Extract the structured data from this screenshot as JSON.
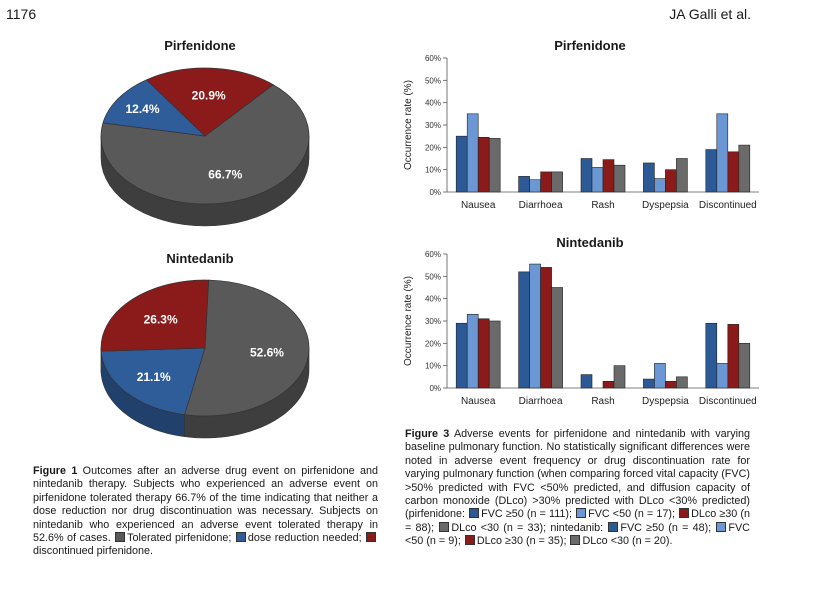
{
  "header": {
    "page_number": "1176",
    "running_head": "JA Galli et al."
  },
  "colors": {
    "tolerated": "#595959",
    "reduction": "#2f5d9a",
    "discontinued": "#8b1a1a",
    "fvc_ge50": "#2c5a96",
    "fvc_lt50": "#6b97d4",
    "dlco_ge30": "#8b1a1a",
    "dlco_lt30": "#6a6a6a"
  },
  "chart_data": [
    {
      "type": "pie",
      "title": "Pirfenidone",
      "slices": [
        {
          "label": "66.7%",
          "value": 66.7,
          "color": "#595959"
        },
        {
          "label": "12.4%",
          "value": 12.4,
          "color": "#2f5d9a"
        },
        {
          "label": "20.9%",
          "value": 20.9,
          "color": "#8b1a1a"
        }
      ]
    },
    {
      "type": "pie",
      "title": "Nintedanib",
      "slices": [
        {
          "label": "52.6%",
          "value": 52.6,
          "color": "#595959"
        },
        {
          "label": "21.1%",
          "value": 21.1,
          "color": "#2f5d9a"
        },
        {
          "label": "26.3%",
          "value": 26.3,
          "color": "#8b1a1a"
        }
      ]
    },
    {
      "type": "bar",
      "title": "Pirfenidone",
      "ylabel": "Occurrence rate (%)",
      "ylim": [
        0,
        60
      ],
      "yticks": [
        "0%",
        "10%",
        "20%",
        "30%",
        "40%",
        "50%",
        "60%"
      ],
      "categories": [
        "Nausea",
        "Diarrhoea",
        "Rash",
        "Dyspepsia",
        "Discontinued"
      ],
      "series": [
        {
          "values": [
            25,
            7,
            15,
            13,
            19
          ]
        },
        {
          "values": [
            35,
            5.5,
            11,
            6,
            35
          ]
        },
        {
          "values": [
            24.5,
            9,
            14.5,
            10,
            18
          ]
        },
        {
          "values": [
            24,
            9,
            12,
            15,
            21
          ]
        }
      ]
    },
    {
      "type": "bar",
      "title": "Nintedanib",
      "ylabel": "Occurrence rate (%)",
      "ylim": [
        0,
        60
      ],
      "yticks": [
        "0%",
        "10%",
        "20%",
        "30%",
        "40%",
        "50%",
        "60%"
      ],
      "categories": [
        "Nausea",
        "Diarrhoea",
        "Rash",
        "Dyspepsia",
        "Discontinued"
      ],
      "series": [
        {
          "values": [
            29,
            52,
            6,
            4,
            29
          ]
        },
        {
          "values": [
            33,
            55.5,
            0,
            11,
            11
          ]
        },
        {
          "values": [
            31,
            54,
            3,
            3,
            28.5
          ]
        },
        {
          "values": [
            30,
            45,
            10,
            5,
            20
          ]
        }
      ]
    }
  ],
  "figure1": {
    "label": "Figure 1",
    "text": "Outcomes after an adverse drug event on pirfenidone and nintedanib therapy. Subjects who experienced an adverse event on pirfenidone tolerated therapy 66.7% of the time indicating that neither a dose reduction nor drug discontinuation was necessary. Subjects on nintedanib who experienced an adverse event tolerated therapy in 52.6% of cases.",
    "legend_tolerated": "Tolerated pirfenidone;",
    "legend_reduction": "dose reduction needed;",
    "legend_discontinued": "discontinued pirfenidone."
  },
  "figure3": {
    "label": "Figure 3",
    "text": "Adverse events for pirfenidone and nintedanib with varying baseline pulmonary function. No statistically significant differences were noted in adverse event frequency or drug discontinuation rate for varying pulmonary function (when comparing forced vital capacity (FVC) >50% predicted with FVC <50% predicted, and diffusion capacity of carbon monoxide (DLco) >30% predicted with DLco <30% predicted) (pirfenidone:",
    "items": [
      "FVC ≥50 (n = 111);",
      "FVC <50 (n = 17);",
      "DLco ≥30 (n = 88);",
      "DLco <30 (n = 33); nintedanib:",
      "FVC ≥50 (n = 48);",
      "FVC <50 (n = 9);",
      "DLco ≥30 (n = 35);",
      "DLco <30 (n = 20)."
    ]
  }
}
